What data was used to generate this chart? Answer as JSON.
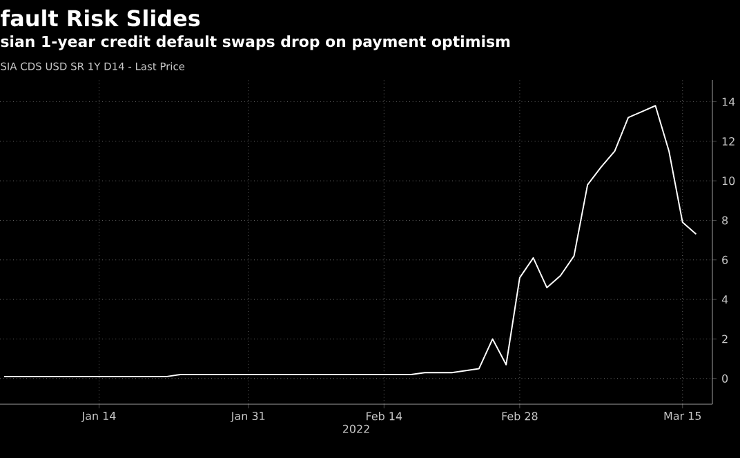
{
  "chart_data": {
    "type": "line",
    "title": "fault Risk Slides",
    "subtitle": "sian 1-year credit default swaps drop on payment optimism",
    "annotations": [
      "SIA CDS USD SR 1Y D14 - Last Price"
    ],
    "xlabel": "2022",
    "categories": [
      null,
      null,
      null,
      null,
      null,
      null,
      null,
      "Jan 14",
      null,
      null,
      null,
      null,
      null,
      null,
      null,
      null,
      null,
      null,
      "Jan 31",
      null,
      null,
      null,
      null,
      null,
      null,
      null,
      null,
      null,
      "Feb 14",
      null,
      null,
      null,
      null,
      null,
      null,
      null,
      null,
      null,
      "Feb 28",
      null,
      null,
      null,
      null,
      null,
      null,
      null,
      null,
      null,
      null,
      null,
      "Mar 15",
      null,
      null,
      null
    ],
    "values": [
      0.1,
      0.1,
      0.1,
      0.1,
      0.1,
      0.1,
      0.1,
      0.1,
      0.1,
      0.1,
      0.1,
      0.1,
      0.1,
      0.2,
      0.2,
      0.2,
      0.2,
      0.2,
      0.2,
      0.2,
      0.2,
      0.2,
      0.2,
      0.2,
      0.2,
      0.2,
      0.2,
      0.2,
      0.2,
      0.2,
      0.2,
      0.3,
      0.3,
      0.3,
      0.4,
      0.5,
      2.0,
      0.7,
      5.1,
      6.1,
      4.6,
      5.2,
      6.2,
      9.8,
      10.7,
      11.5,
      13.2,
      13.5,
      13.8,
      11.5,
      7.9,
      7.3,
      null,
      null
    ],
    "color": "#ffffff",
    "ylim": [
      -1.3,
      15.1
    ],
    "yticks": [
      0,
      2,
      4,
      6,
      8,
      10,
      12,
      14
    ],
    "grid": true,
    "marker": "none",
    "line_style": "solid"
  }
}
